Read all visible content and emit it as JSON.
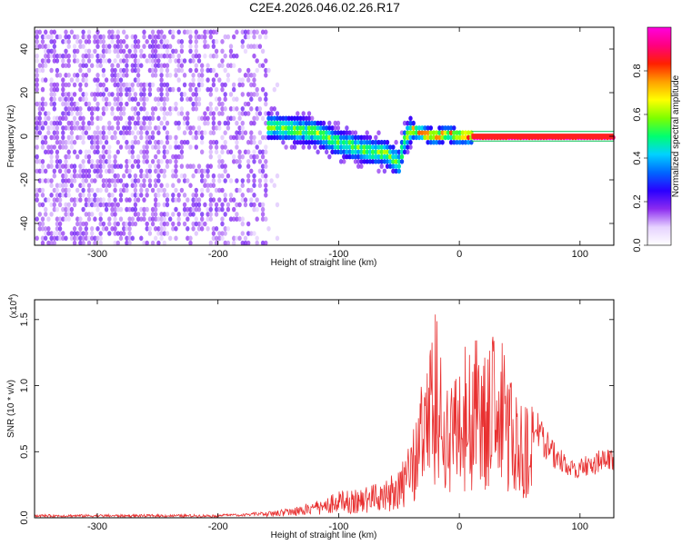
{
  "title": "C2E4.2026.046.02.26.R17",
  "chart_data": [
    {
      "type": "heatmap",
      "xlabel": "Height of straight line (km)",
      "ylabel": "Frequency (Hz)",
      "xlim": [
        -352,
        128
      ],
      "ylim": [
        -50,
        50
      ],
      "xticks": [
        -300,
        -200,
        -100,
        0,
        100
      ],
      "yticks": [
        -40,
        -20,
        0,
        20,
        40
      ],
      "colorbar": {
        "label": "Normalized spectral amplitude",
        "range": [
          0,
          1
        ],
        "ticks": [
          "0.0",
          "0.2",
          "0.4",
          "0.6",
          "0.8"
        ],
        "tick_values": [
          0,
          0.2,
          0.4,
          0.6,
          0.8
        ],
        "colors": [
          "#ffffff",
          "#e6d2ff",
          "#8c2bf0",
          "#2a00ff",
          "#0066ff",
          "#00d2ff",
          "#00ff70",
          "#7cff00",
          "#ffff00",
          "#ffa000",
          "#ff2000",
          "#ff0080",
          "#ff00e0"
        ]
      },
      "ridge": {
        "x": [
          -240,
          -210,
          -180,
          -150,
          -120,
          -100,
          -80,
          -60,
          -50,
          -45,
          -40,
          -30,
          -20,
          -10,
          0,
          10,
          128
        ],
        "y": [
          5,
          6,
          6,
          4,
          2,
          -3,
          -6,
          -8,
          -12,
          -2,
          3,
          1,
          0,
          1,
          0,
          0,
          0
        ]
      }
    },
    {
      "type": "line",
      "xlabel": "Height of straight line (km)",
      "ylabel": "SNR (10 * v/v)",
      "y_multiplier": "(x10",
      "y_multiplier_exp": "4",
      "xlim": [
        -352,
        128
      ],
      "ylim": [
        0,
        1.65
      ],
      "xticks": [
        -300,
        -200,
        -100,
        0,
        100
      ],
      "ytick_labels": [
        "0.0",
        "0.5",
        "1.0",
        "1.5"
      ],
      "yticks": [
        0,
        0.5,
        1.0,
        1.5
      ],
      "line_color": "#e83030",
      "envelope": {
        "x": [
          -352,
          -250,
          -180,
          -150,
          -120,
          -100,
          -80,
          -60,
          -45,
          -35,
          -30,
          -25,
          -20,
          -15,
          -10,
          0,
          10,
          20,
          30,
          35,
          40,
          45,
          50,
          55,
          60,
          65,
          70,
          80,
          90,
          100,
          110,
          120,
          128
        ],
        "y": [
          0.01,
          0.02,
          0.03,
          0.06,
          0.12,
          0.2,
          0.22,
          0.3,
          0.45,
          0.8,
          1.1,
          1.2,
          1.6,
          1.3,
          1.1,
          1.3,
          1.35,
          1.4,
          1.45,
          1.35,
          1.2,
          1.0,
          0.95,
          0.9,
          0.85,
          0.8,
          0.7,
          0.55,
          0.48,
          0.45,
          0.5,
          0.52,
          0.55
        ]
      }
    }
  ]
}
